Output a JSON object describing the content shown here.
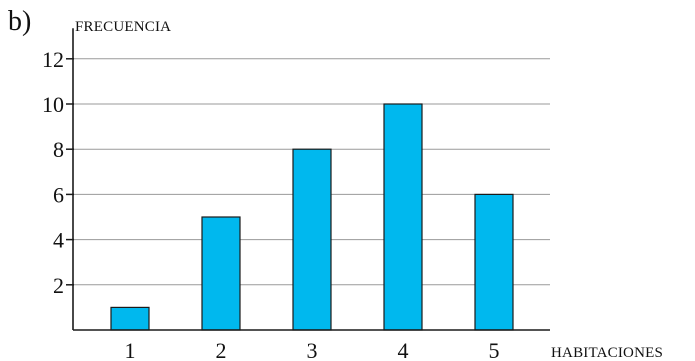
{
  "part_label": "b)",
  "chart_data": {
    "type": "bar",
    "categories": [
      "1",
      "2",
      "3",
      "4",
      "5"
    ],
    "values": [
      1,
      5,
      8,
      10,
      6
    ],
    "xlabel": "HABITACIONES",
    "ylabel": "FRECUENCIA",
    "ylim": [
      0,
      13
    ],
    "yticks": [
      2,
      4,
      6,
      8,
      10,
      12
    ],
    "grid": true,
    "colors": {
      "bar_fill": "#00b8ee",
      "bar_stroke": "#1a1a1a",
      "axis": "#1a1a1a",
      "grid": "#9a9a9a"
    }
  }
}
